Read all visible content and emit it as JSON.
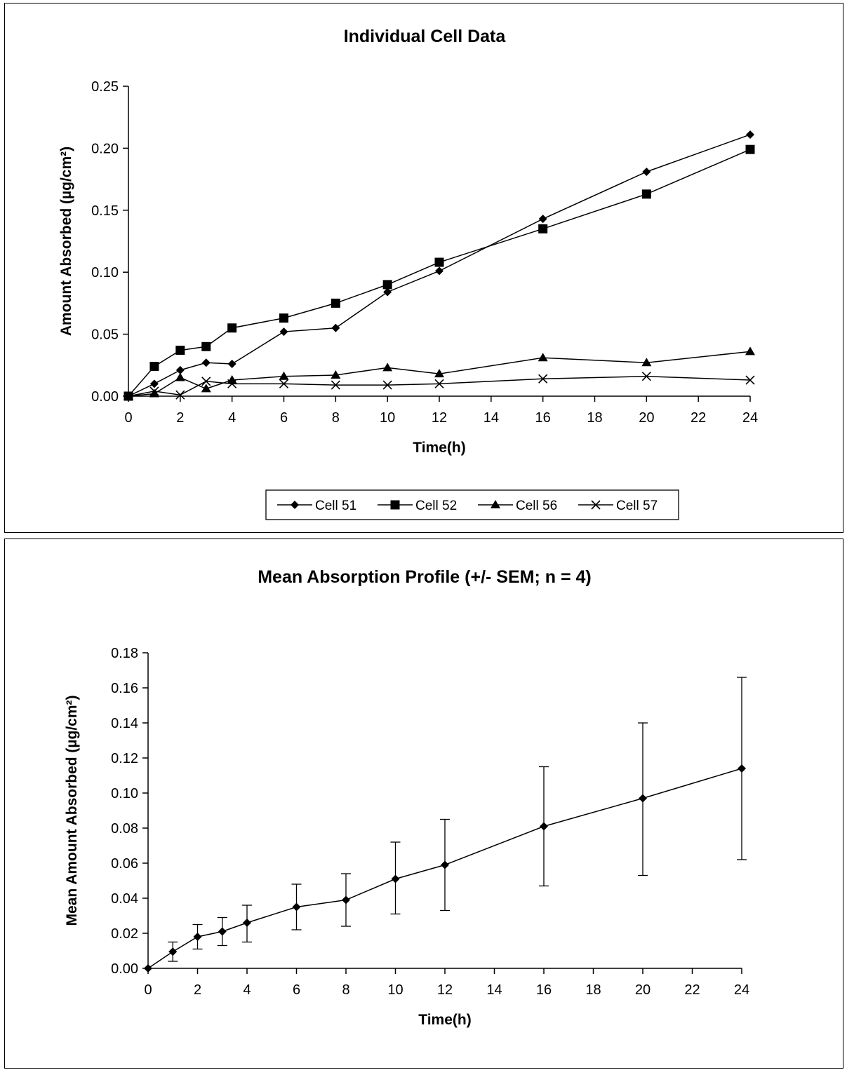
{
  "chart_data": [
    {
      "type": "line",
      "title": "Individual Cell Data",
      "xlabel": "Time(h)",
      "ylabel": "Amount Absorbed  (µg/cm²)",
      "xlim": [
        0,
        24
      ],
      "ylim": [
        0,
        0.25
      ],
      "x_ticks": [
        "0",
        "2",
        "4",
        "6",
        "8",
        "10",
        "12",
        "14",
        "16",
        "18",
        "20",
        "22",
        "24"
      ],
      "y_ticks": [
        "0.00",
        "0.05",
        "0.10",
        "0.15",
        "0.20",
        "0.25"
      ],
      "x": [
        0,
        1,
        2,
        3,
        4,
        6,
        8,
        10,
        12,
        16,
        20,
        24
      ],
      "grid": false,
      "legend_position": "bottom",
      "series": [
        {
          "name": "Cell 51",
          "marker": "diamond",
          "values": [
            0.0,
            0.01,
            0.021,
            0.027,
            0.026,
            0.052,
            0.055,
            0.084,
            0.101,
            0.143,
            0.181,
            0.211
          ]
        },
        {
          "name": "Cell 52",
          "marker": "square",
          "values": [
            0.0,
            0.024,
            0.037,
            0.04,
            0.055,
            0.063,
            0.075,
            0.09,
            0.108,
            0.135,
            0.163,
            0.199
          ]
        },
        {
          "name": "Cell 56",
          "marker": "triangle",
          "values": [
            0.0,
            0.002,
            0.015,
            0.006,
            0.013,
            0.016,
            0.017,
            0.023,
            0.018,
            0.031,
            0.027,
            0.036
          ]
        },
        {
          "name": "Cell 57",
          "marker": "x",
          "values": [
            0.0,
            0.004,
            0.001,
            0.012,
            0.01,
            0.01,
            0.009,
            0.009,
            0.01,
            0.014,
            0.016,
            0.013
          ]
        }
      ]
    },
    {
      "type": "line",
      "title": "Mean Absorption Profile (+/- SEM; n = 4)",
      "xlabel": "Time(h)",
      "ylabel": "Mean Amount Absorbed  (µg/cm²)",
      "xlim": [
        0,
        24
      ],
      "ylim": [
        0,
        0.18
      ],
      "x_ticks": [
        "0",
        "2",
        "4",
        "6",
        "8",
        "10",
        "12",
        "14",
        "16",
        "18",
        "20",
        "22",
        "24"
      ],
      "y_ticks": [
        "0.00",
        "0.02",
        "0.04",
        "0.06",
        "0.08",
        "0.10",
        "0.12",
        "0.14",
        "0.16",
        "0.18"
      ],
      "x": [
        0,
        1,
        2,
        3,
        4,
        6,
        8,
        10,
        12,
        16,
        20,
        24
      ],
      "grid": false,
      "series": [
        {
          "marker": "diamond",
          "values": [
            0.0,
            0.0095,
            0.018,
            0.021,
            0.026,
            0.035,
            0.039,
            0.051,
            0.059,
            0.081,
            0.097,
            0.114
          ],
          "error_low": [
            0.0,
            0.004,
            0.011,
            0.013,
            0.015,
            0.022,
            0.024,
            0.031,
            0.033,
            0.047,
            0.053,
            0.062
          ],
          "error_high": [
            0.0,
            0.015,
            0.025,
            0.029,
            0.036,
            0.048,
            0.054,
            0.072,
            0.085,
            0.115,
            0.14,
            0.166
          ]
        }
      ]
    }
  ]
}
